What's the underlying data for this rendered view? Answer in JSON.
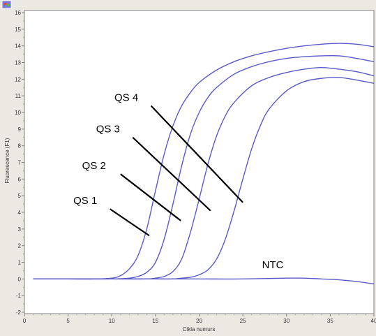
{
  "chart_data": {
    "type": "line",
    "title": "",
    "xlabel": "Cikla numurs",
    "ylabel": "Fluorescence (F1)",
    "xlim": [
      0,
      40
    ],
    "ylim": [
      -2,
      16
    ],
    "x_ticks": [
      "0",
      "5",
      "10",
      "15",
      "20",
      "25",
      "30",
      "35",
      "40"
    ],
    "y_ticks": [
      "-2",
      "-1",
      "0",
      "1",
      "2",
      "3",
      "4",
      "5",
      "6",
      "7",
      "8",
      "9",
      "10",
      "11",
      "12",
      "13",
      "14",
      "15",
      "16"
    ],
    "grid": false,
    "legend": "none",
    "line_color": "#5a5ac8",
    "series": [
      {
        "name": "QS 4",
        "x": [
          1,
          5,
          8,
          10,
          11,
          12,
          13,
          14,
          15,
          16,
          17,
          18,
          19,
          20,
          22,
          24,
          26,
          28,
          30,
          32,
          34,
          36,
          38,
          40
        ],
        "y": [
          0,
          0,
          0,
          0.05,
          0.2,
          0.6,
          1.4,
          3.0,
          5.3,
          7.5,
          9.2,
          10.4,
          11.2,
          11.8,
          12.55,
          13.05,
          13.4,
          13.65,
          13.85,
          14.0,
          14.1,
          14.15,
          14.1,
          13.95
        ]
      },
      {
        "name": "QS 3",
        "x": [
          1,
          5,
          10,
          12,
          13,
          14,
          15,
          16,
          17,
          18,
          19,
          20,
          21,
          22,
          24,
          26,
          28,
          30,
          32,
          34,
          36,
          38,
          40
        ],
        "y": [
          0,
          0,
          0,
          0.05,
          0.15,
          0.4,
          1.0,
          2.4,
          4.5,
          6.8,
          8.7,
          10.0,
          10.9,
          11.5,
          12.3,
          12.75,
          13.05,
          13.25,
          13.35,
          13.4,
          13.4,
          13.25,
          13.05
        ]
      },
      {
        "name": "QS 2",
        "x": [
          1,
          5,
          10,
          14,
          15,
          16,
          17,
          18,
          19,
          20,
          21,
          22,
          23,
          24,
          26,
          28,
          30,
          32,
          34,
          36,
          38,
          40
        ],
        "y": [
          0,
          0,
          0,
          0,
          0.05,
          0.15,
          0.45,
          1.2,
          2.8,
          4.8,
          6.9,
          8.6,
          9.8,
          10.6,
          11.6,
          12.1,
          12.4,
          12.6,
          12.7,
          12.6,
          12.45,
          12.2
        ]
      },
      {
        "name": "QS 1",
        "x": [
          1,
          5,
          10,
          15,
          17,
          18,
          19,
          20,
          21,
          22,
          23,
          24,
          25,
          26,
          27,
          28,
          30,
          32,
          34,
          36,
          38,
          40
        ],
        "y": [
          0,
          0,
          0,
          0,
          0,
          0.05,
          0.1,
          0.25,
          0.55,
          1.2,
          2.4,
          4.1,
          6.0,
          7.8,
          9.2,
          10.2,
          11.3,
          11.85,
          12.05,
          12.1,
          11.95,
          11.75
        ]
      },
      {
        "name": "NTC",
        "x": [
          1,
          5,
          10,
          15,
          20,
          25,
          30,
          32,
          34,
          36,
          38,
          40
        ],
        "y": [
          0,
          0,
          0,
          0,
          0,
          0,
          0.05,
          0.05,
          0,
          -0.05,
          -0.15,
          -0.3
        ]
      }
    ],
    "annotations": [
      {
        "text": "QS 4",
        "label_x": 10.3,
        "label_y": 10.7,
        "pointer": [
          [
            14.5,
            10.4
          ],
          [
            25.0,
            4.6
          ]
        ]
      },
      {
        "text": "QS 3",
        "label_x": 8.2,
        "label_y": 8.8,
        "pointer": [
          [
            12.4,
            8.5
          ],
          [
            21.3,
            4.1
          ]
        ]
      },
      {
        "text": "QS 2",
        "label_x": 6.6,
        "label_y": 6.6,
        "pointer": [
          [
            11.0,
            6.3
          ],
          [
            17.9,
            3.5
          ]
        ]
      },
      {
        "text": "QS 1",
        "label_x": 5.6,
        "label_y": 4.5,
        "pointer": [
          [
            9.8,
            4.2
          ],
          [
            14.3,
            2.6
          ]
        ]
      },
      {
        "text": "NTC",
        "label_x": 27.2,
        "label_y": 0.65,
        "pointer": null
      }
    ]
  }
}
